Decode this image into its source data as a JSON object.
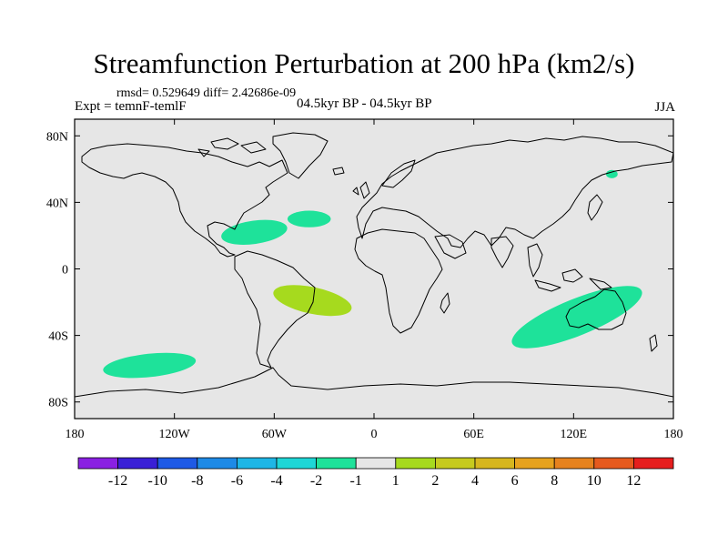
{
  "title": "Streamfunction Perturbation at 200 hPa (km2/s)",
  "stats": "rmsd= 0.529649 diff= 2.42686e-09",
  "experiment": "Expt = temnF-temlF",
  "period": "04.5kyr BP - 04.5kyr BP",
  "season": "JJA",
  "colors": {
    "ocean_land": "#e6e6e6",
    "coastline": "#000000",
    "negative_fill": "#1ee29a",
    "positive_fill": "#a6da1e"
  },
  "map": {
    "projection": "cylindrical-equidistant",
    "lon_range": [
      -180,
      180
    ],
    "lat_range": [
      -90,
      90
    ],
    "lon_ticks": [
      {
        "value": -180,
        "label": "180"
      },
      {
        "value": -120,
        "label": "120W"
      },
      {
        "value": -60,
        "label": "60W"
      },
      {
        "value": 0,
        "label": "0"
      },
      {
        "value": 60,
        "label": "60E"
      },
      {
        "value": 120,
        "label": "120E"
      },
      {
        "value": 180,
        "label": "180"
      }
    ],
    "lat_ticks": [
      {
        "value": 80,
        "label": "80N"
      },
      {
        "value": 40,
        "label": "40N"
      },
      {
        "value": 0,
        "label": "0"
      },
      {
        "value": -40,
        "label": "40S"
      },
      {
        "value": -80,
        "label": "80S"
      }
    ],
    "anomalies": [
      {
        "name": "gulf-of-mexico-negative",
        "sign": "negative",
        "lon": -72,
        "lat": 22,
        "rx": 20,
        "ry": 7,
        "rot": -8
      },
      {
        "name": "north-atlantic-negative",
        "sign": "negative",
        "lon": -39,
        "lat": 30,
        "rx": 13,
        "ry": 5,
        "rot": 0
      },
      {
        "name": "kamchatka-negative",
        "sign": "negative",
        "lon": 143,
        "lat": 57,
        "rx": 3.5,
        "ry": 2.5,
        "rot": 0
      },
      {
        "name": "south-pacific-negative",
        "sign": "negative",
        "lon": -135,
        "lat": -58,
        "rx": 28,
        "ry": 7,
        "rot": -6
      },
      {
        "name": "indian-ocean-australia-negative",
        "sign": "negative",
        "lon": 122,
        "lat": -29,
        "rx": 42,
        "ry": 11,
        "rot": -22
      },
      {
        "name": "south-atlantic-positive",
        "sign": "positive",
        "lon": -37,
        "lat": -19,
        "rx": 24,
        "ry": 8,
        "rot": 12
      }
    ]
  },
  "colorbar": {
    "colors": [
      "#8a20e2",
      "#3a20d6",
      "#1e5ae6",
      "#1e8ae6",
      "#1eb6e6",
      "#1ed6d6",
      "#1ee29a",
      "#e6e6e6",
      "#a6da1e",
      "#c6ca1e",
      "#d6b61e",
      "#e6a21e",
      "#e6821e",
      "#e65a1e",
      "#e61e1e"
    ],
    "labels": [
      "-12",
      "-10",
      "-8",
      "-6",
      "-4",
      "-2",
      "-1",
      "1",
      "2",
      "4",
      "6",
      "8",
      "10",
      "12"
    ]
  }
}
